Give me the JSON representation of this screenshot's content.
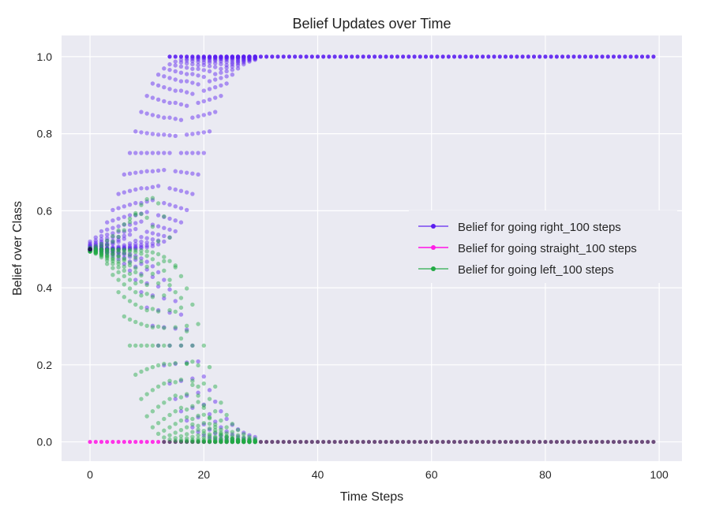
{
  "chart_data": {
    "type": "scatter",
    "title": "Belief Updates over Time",
    "xlabel": "Time Steps",
    "ylabel": "Belief over Class",
    "xlim": [
      -5,
      104
    ],
    "ylim": [
      -0.05,
      1.055
    ],
    "x_ticks": [
      0,
      20,
      40,
      60,
      80,
      100
    ],
    "y_ticks": [
      0.0,
      0.2,
      0.4,
      0.6,
      0.8,
      1.0
    ],
    "x_tick_labels": [
      "0",
      "20",
      "40",
      "60",
      "80",
      "100"
    ],
    "y_tick_labels": [
      "0.0",
      "0.2",
      "0.4",
      "0.6",
      "0.8",
      "1.0"
    ],
    "grid": true,
    "legend_position": "center-right",
    "background": "#EAEAF2",
    "series": [
      {
        "name": "Belief for going right_100 steps",
        "color": "#5B1EF0",
        "trajectories": [
          {
            "end": 1,
            "t_center": 7,
            "width": 2.2
          },
          {
            "end": 1,
            "t_center": 8,
            "width": 2.3
          },
          {
            "end": 1,
            "t_center": 9,
            "width": 2.4
          },
          {
            "end": 1,
            "t_center": 10,
            "width": 2.5
          },
          {
            "end": 1,
            "t_center": 11,
            "width": 2.6
          },
          {
            "end": 1,
            "t_center": 12,
            "width": 2.6
          },
          {
            "end": 1,
            "t_center": 13,
            "width": 2.7
          },
          {
            "end": 1,
            "t_center": 14,
            "width": 2.8
          },
          {
            "end": 1,
            "t_center": 16,
            "width": 2.6
          },
          {
            "end": 1,
            "t_center": 17,
            "width": 2.5
          },
          {
            "end": 1,
            "t_center": 18,
            "width": 2.4
          },
          {
            "end": 1,
            "t_center": 19,
            "width": 2.3
          },
          {
            "end": 1,
            "t_center": 20,
            "width": 2.2
          },
          {
            "end": 0,
            "t_center": 12,
            "width": 2.4
          },
          {
            "end": 0,
            "t_center": 14,
            "width": 2.6
          },
          {
            "end": 0,
            "t_center": 16,
            "width": 2.8
          },
          {
            "end": 0,
            "t_center": 18,
            "width": 3.0
          }
        ]
      },
      {
        "name": "Belief for going straight_100 steps",
        "color": "#FF1EE6",
        "trajectories": [
          {
            "constant": 0,
            "t_start": 0,
            "t_end": 14
          }
        ]
      },
      {
        "name": "Belief for going left_100 steps",
        "color": "#22AA44",
        "trajectories": [
          {
            "end": 0,
            "t_center": 7,
            "width": 1.6
          },
          {
            "end": 0,
            "t_center": 8,
            "width": 1.8
          },
          {
            "end": 0,
            "t_center": 9,
            "width": 2.0
          },
          {
            "end": 0,
            "t_center": 10,
            "width": 2.2
          },
          {
            "end": 0,
            "t_center": 11,
            "width": 2.4
          },
          {
            "end": 0,
            "t_center": 12,
            "width": 2.6
          },
          {
            "end": 0,
            "t_center": 13,
            "width": 2.5
          },
          {
            "end": 0,
            "t_center": 14,
            "width": 2.7
          },
          {
            "end": 0,
            "t_center": 16,
            "width": 2.6
          },
          {
            "end": 0,
            "t_center": 18,
            "width": 2.4
          },
          {
            "end": 0,
            "t_center": 20,
            "width": 2.2
          },
          {
            "end": 0,
            "hump": 0.67,
            "t_peak": 12,
            "t_center": 17,
            "width": 2.0
          },
          {
            "end": 0,
            "hump": 0.62,
            "t_peak": 10,
            "t_center": 16,
            "width": 2.2
          }
        ]
      }
    ],
    "overlap_color": "#5E3A6E",
    "start_value": 0.5,
    "steps": 100
  }
}
